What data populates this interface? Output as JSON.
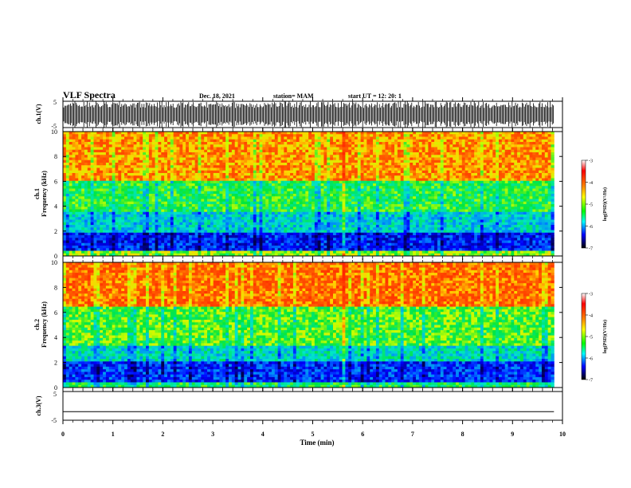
{
  "header": {
    "title": "VLF Spectra",
    "date": "Dec. 18, 2021",
    "station": "station= MAM",
    "start": "start  UT =   12: 20: 1"
  },
  "colorbar": {
    "label": "log(PSD)(V²/Hz)",
    "ticks": [
      "-3",
      "-4",
      "-5",
      "-6",
      "-7"
    ],
    "colors": [
      "#ffffff",
      "#ff0000",
      "#ff8800",
      "#ffff00",
      "#00ff00",
      "#00ffff",
      "#0000ff",
      "#000000"
    ]
  },
  "chart_data": [
    {
      "type": "line",
      "name": "ch1-waveform",
      "ylabel": "ch.1(V)",
      "ylim": [
        -5,
        5
      ],
      "yticks": [
        "5",
        "-5"
      ],
      "xlim": [
        0,
        10
      ],
      "note_values": "dense bursts of pulses spanning roughly -5 to 5 V across the full interval"
    },
    {
      "type": "heatmap",
      "name": "ch1-spectrogram",
      "ylabel": "ch.1\nFrequency (kHz)",
      "ylim": [
        0,
        10
      ],
      "yticks": [
        "0",
        "2",
        "4",
        "6",
        "8",
        "10"
      ],
      "xlim": [
        0,
        9.83
      ],
      "zlim": [
        -7,
        -3
      ],
      "bands": [
        {
          "fmin": 0,
          "fmax": 0.5,
          "level": -4.5
        },
        {
          "fmin": 0.5,
          "fmax": 1.9,
          "level": -6.3
        },
        {
          "fmin": 1.9,
          "fmax": 3.5,
          "level": -5.5
        },
        {
          "fmin": 3.5,
          "fmax": 6.0,
          "level": -4.9
        },
        {
          "fmin": 6.0,
          "fmax": 10,
          "level": -3.8
        }
      ]
    },
    {
      "type": "heatmap",
      "name": "ch2-spectrogram",
      "ylabel": "ch.2\nFrequency (kHz)",
      "ylim": [
        0,
        10
      ],
      "yticks": [
        "0",
        "2",
        "4",
        "6",
        "8",
        "10"
      ],
      "xlim": [
        0,
        9.83
      ],
      "zlim": [
        -7,
        -3
      ],
      "bands": [
        {
          "fmin": 0,
          "fmax": 0.4,
          "level": -5.0
        },
        {
          "fmin": 0.4,
          "fmax": 2.0,
          "level": -6.2
        },
        {
          "fmin": 2.0,
          "fmax": 3.3,
          "level": -5.4
        },
        {
          "fmin": 3.3,
          "fmax": 6.5,
          "level": -4.7
        },
        {
          "fmin": 6.5,
          "fmax": 10,
          "level": -3.6
        }
      ]
    },
    {
      "type": "line",
      "name": "ch3-waveform",
      "ylabel": "ch.3(V)",
      "ylim": [
        -5,
        5
      ],
      "yticks": [
        "5",
        "-5"
      ],
      "xlim": [
        0,
        10
      ],
      "x": [
        0,
        9.83
      ],
      "values": [
        -2,
        -2
      ]
    }
  ],
  "xaxis": {
    "label": "Time (min)",
    "ticks": [
      "0",
      "1",
      "2",
      "3",
      "4",
      "5",
      "6",
      "7",
      "8",
      "9",
      "10"
    ],
    "range": [
      0,
      10
    ]
  }
}
